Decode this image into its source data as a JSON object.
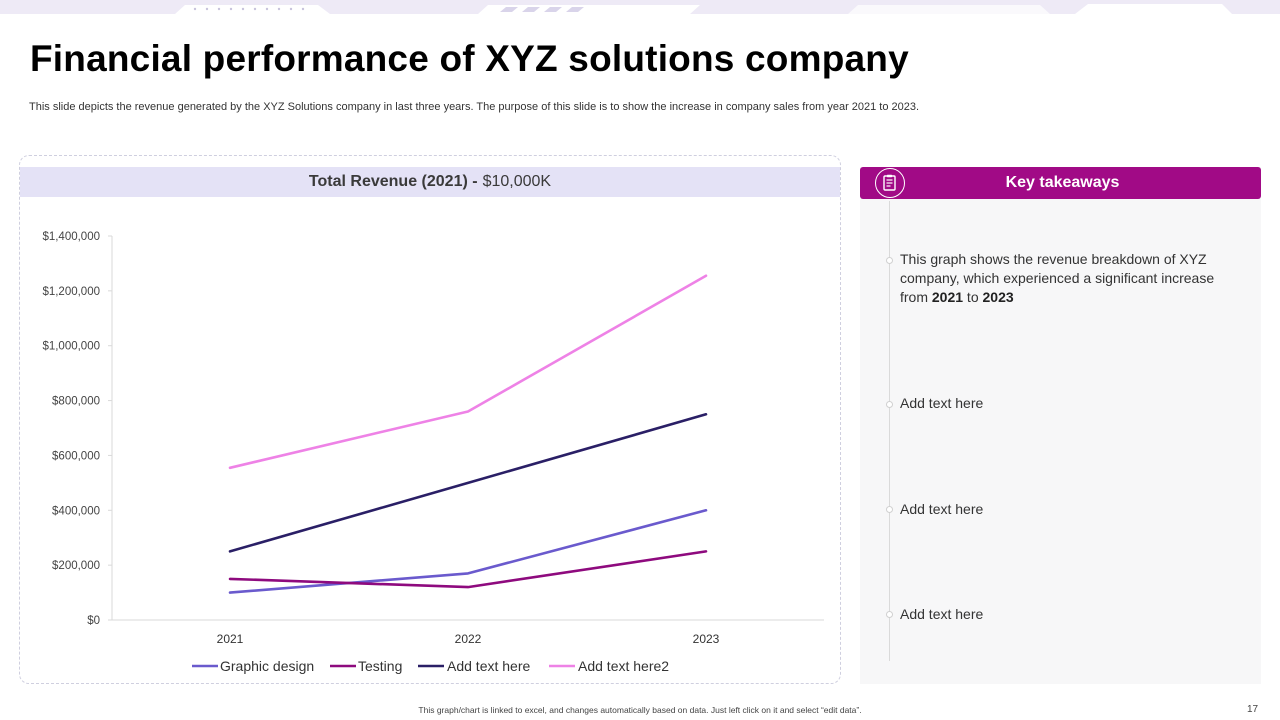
{
  "slide": {
    "title": "Financial performance of XYZ solutions company",
    "subtitle": "This slide depicts the revenue generated  by the XYZ Solutions company in last three years. The purpose of this slide is to show the  increase in company sales from year 2021 to 2023.",
    "footer": "This graph/chart is linked to excel, and changes automatically based on data. Just left click on it and select “edit data”.",
    "page_number": "17"
  },
  "chart_header": {
    "label": "Total Revenue (2021) -",
    "value": "$10,000K"
  },
  "takeaways": {
    "title": "Key takeaways",
    "icon": "notepad-icon",
    "items": [
      {
        "pre": "This graph shows the revenue breakdown of XYZ company, which experienced a significant increase from ",
        "y1": "2021",
        "mid": " to ",
        "y2": "2023"
      },
      {
        "text": "Add text here"
      },
      {
        "text": "Add text here"
      },
      {
        "text": "Add text here"
      }
    ]
  },
  "chart_data": {
    "type": "line",
    "x": [
      "2021",
      "2022",
      "2023"
    ],
    "ylim": [
      0,
      1400000
    ],
    "yticks": [
      0,
      200000,
      400000,
      600000,
      800000,
      1000000,
      1200000,
      1400000
    ],
    "ytick_labels": [
      "$0",
      "$200,000",
      "$400,000",
      "$600,000",
      "$800,000",
      "$1,000,000",
      "$1,200,000",
      "$1,400,000"
    ],
    "grid": false,
    "legend": "bottom",
    "series": [
      {
        "name": "Graphic design",
        "color": "#6a5acd",
        "values": [
          100000,
          170000,
          400000
        ]
      },
      {
        "name": "Testing",
        "color": "#8e0a7e",
        "values": [
          150000,
          120000,
          250000
        ]
      },
      {
        "name": "Add text here",
        "color": "#2a1f66",
        "values": [
          250000,
          500000,
          750000
        ]
      },
      {
        "name": "Add text here2",
        "color": "#ee82e6",
        "values": [
          555000,
          760000,
          1255000
        ]
      }
    ]
  },
  "colors": {
    "accent": "#a10a86",
    "header_band": "#e4e2f6"
  }
}
